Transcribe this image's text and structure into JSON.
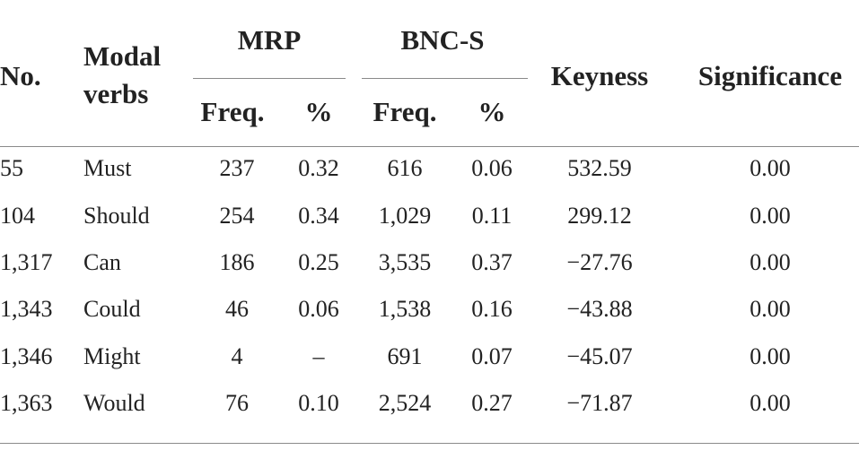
{
  "table": {
    "header": {
      "columns": [
        "No.",
        "Modal verbs",
        "Keyness",
        "Significance"
      ],
      "groups": [
        "MRP",
        "BNC-S"
      ],
      "subcolumns": [
        "Freq.",
        "%",
        "Freq.",
        "%"
      ]
    },
    "rows": [
      [
        "55",
        "Must",
        "237",
        "0.32",
        "616",
        "0.06",
        "532.59",
        "0.00"
      ],
      [
        "104",
        "Should",
        "254",
        "0.34",
        "1,029",
        "0.11",
        "299.12",
        "0.00"
      ],
      [
        "1,317",
        "Can",
        "186",
        "0.25",
        "3,535",
        "0.37",
        "−27.76",
        "0.00"
      ],
      [
        "1,343",
        "Could",
        "46",
        "0.06",
        "1,538",
        "0.16",
        "−43.88",
        "0.00"
      ],
      [
        "1,346",
        "Might",
        "4",
        "–",
        "691",
        "0.07",
        "−45.07",
        "0.00"
      ],
      [
        "1,363",
        "Would",
        "76",
        "0.10",
        "2,524",
        "0.27",
        "−71.87",
        "0.00"
      ]
    ]
  }
}
